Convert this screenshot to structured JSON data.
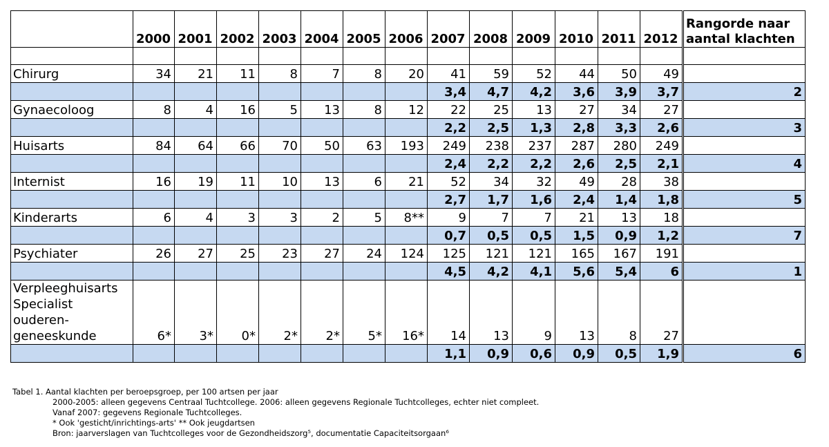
{
  "table": {
    "corner": "",
    "years": [
      "2000",
      "2001",
      "2002",
      "2003",
      "2004",
      "2005",
      "2006",
      "2007",
      "2008",
      "2009",
      "2010",
      "2011",
      "2012"
    ],
    "rank_header_line1": "Rangorde naar",
    "rank_header_line2": "aantal klachten",
    "rows": [
      {
        "name": "Chirurg",
        "counts": [
          "34",
          "21",
          "11",
          "8",
          "7",
          "8",
          "20",
          "41",
          "59",
          "52",
          "44",
          "50",
          "49"
        ],
        "per100": [
          "",
          "",
          "",
          "",
          "",
          "",
          "",
          "3,4",
          "4,7",
          "4,2",
          "3,6",
          "3,9",
          "3,7"
        ],
        "rank": "2"
      },
      {
        "name": "Gynaecoloog",
        "counts": [
          "8",
          "4",
          "16",
          "5",
          "13",
          "8",
          "12",
          "22",
          "25",
          "13",
          "27",
          "34",
          "27"
        ],
        "per100": [
          "",
          "",
          "",
          "",
          "",
          "",
          "",
          "2,2",
          "2,5",
          "1,3",
          "2,8",
          "3,3",
          "2,6"
        ],
        "rank": "3"
      },
      {
        "name": "Huisarts",
        "counts": [
          "84",
          "64",
          "66",
          "70",
          "50",
          "63",
          "193",
          "249",
          "238",
          "237",
          "287",
          "280",
          "249"
        ],
        "per100": [
          "",
          "",
          "",
          "",
          "",
          "",
          "",
          "2,4",
          "2,2",
          "2,2",
          "2,6",
          "2,5",
          "2,1"
        ],
        "rank": "4"
      },
      {
        "name": "Internist",
        "counts": [
          "16",
          "19",
          "11",
          "10",
          "13",
          "6",
          "21",
          "52",
          "34",
          "32",
          "49",
          "28",
          "38"
        ],
        "per100": [
          "",
          "",
          "",
          "",
          "",
          "",
          "",
          "2,7",
          "1,7",
          "1,6",
          "2,4",
          "1,4",
          "1,8"
        ],
        "rank": "5"
      },
      {
        "name": "Kinderarts",
        "counts": [
          "6",
          "4",
          "3",
          "3",
          "2",
          "5",
          "8**",
          "9",
          "7",
          "7",
          "21",
          "13",
          "18"
        ],
        "per100": [
          "",
          "",
          "",
          "",
          "",
          "",
          "",
          "0,7",
          "0,5",
          "0,5",
          "1,5",
          "0,9",
          "1,2"
        ],
        "rank": "7"
      },
      {
        "name": "Psychiater",
        "counts": [
          "26",
          "27",
          "25",
          "23",
          "27",
          "24",
          "124",
          "125",
          "121",
          "121",
          "165",
          "167",
          "191"
        ],
        "per100": [
          "",
          "",
          "",
          "",
          "",
          "",
          "",
          "4,5",
          "4,2",
          "4,1",
          "5,6",
          "5,4",
          "6"
        ],
        "rank": "1"
      },
      {
        "name": "Verpleeghuisarts Specialist ouderen-geneeskunde",
        "counts": [
          "6*",
          "3*",
          "0*",
          "2*",
          "2*",
          "5*",
          "16*",
          "14",
          "13",
          "9",
          "13",
          "8",
          "27"
        ],
        "per100": [
          "",
          "",
          "",
          "",
          "",
          "",
          "",
          "1,1",
          "0,9",
          "0,6",
          "0,9",
          "0,5",
          "1,9"
        ],
        "rank": "6"
      }
    ]
  },
  "notes": {
    "caption": "Tabel 1. Aantal klachten per beroepsgroep, per 100 artsen per jaar",
    "line1": "2000-2005: alleen gegevens Centraal Tuchtcollege. 2006: alleen gegevens Regionale Tuchtcolleges, echter niet compleet.",
    "line2": "Vanaf 2007: gegevens Regionale Tuchtcolleges.",
    "line3": "* Ook 'gesticht/inrichtings-arts'   ** Ook jeugdartsen",
    "line4": "Bron: jaarverslagen van Tuchtcolleges voor de Gezondheidszorg⁵, documentatie Capaciteitsorgaan⁶"
  }
}
